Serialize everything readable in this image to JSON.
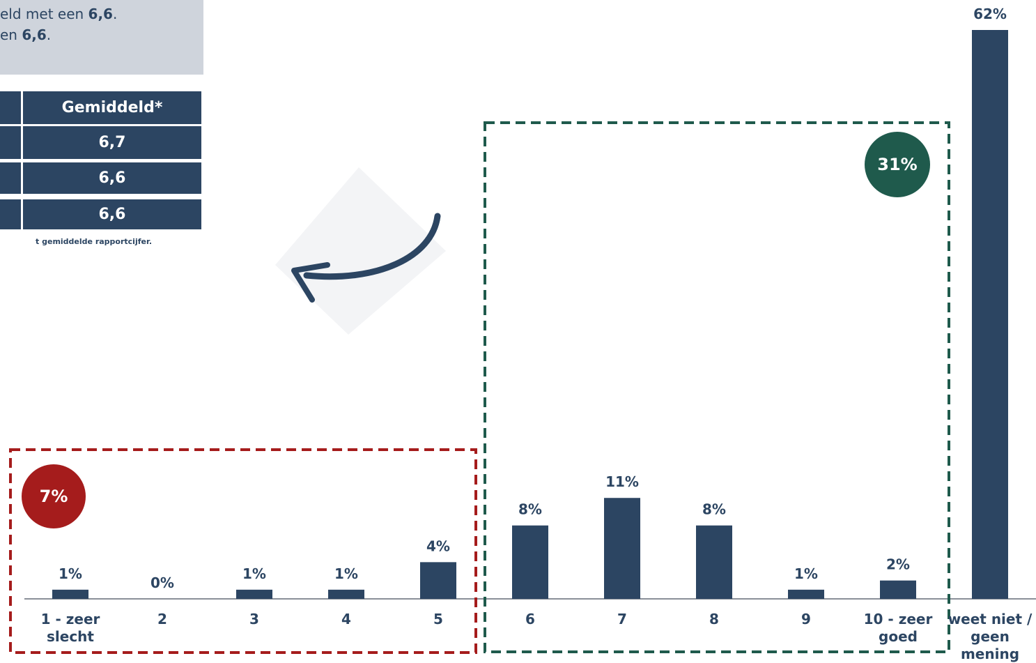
{
  "intro": {
    "lines": [
      [
        "eld met een ",
        "6,6",
        "."
      ],
      [
        "en ",
        "6,6",
        "."
      ]
    ]
  },
  "table": {
    "header": "Gemiddeld*",
    "rows": [
      "6,7",
      "6,6",
      "6,6"
    ]
  },
  "footnote": "t gemiddelde rapportcijfer.",
  "chart_data": {
    "type": "bar",
    "categories": [
      "1 - zeer slecht",
      "2",
      "3",
      "4",
      "5",
      "6",
      "7",
      "8",
      "9",
      "10 - zeer goed",
      "weet niet / geen mening"
    ],
    "values": [
      1,
      0,
      1,
      1,
      4,
      8,
      11,
      8,
      1,
      2,
      62
    ],
    "value_labels": [
      "1%",
      "0%",
      "1%",
      "1%",
      "4%",
      "8%",
      "11%",
      "8%",
      "1%",
      "2%",
      "62%"
    ],
    "color": "#2c4562",
    "ylim": [
      0,
      62
    ],
    "groups": [
      {
        "label": "7%",
        "color": "#a51c1c"
      },
      {
        "label": "31%",
        "color": "#1f5a4c"
      }
    ]
  }
}
